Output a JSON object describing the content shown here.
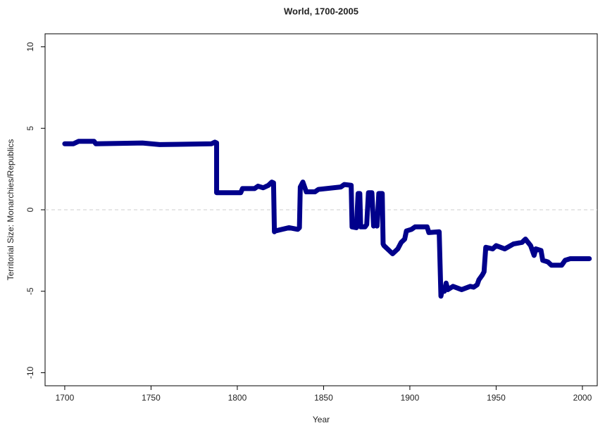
{
  "chart_data": {
    "type": "line",
    "title": "World, 1700-2005",
    "x_label": "Year",
    "y_label": "Territorial Size: Monarchies/Republics",
    "x": [
      1700,
      1705,
      1708,
      1717,
      1718,
      1745,
      1750,
      1755,
      1785,
      1787,
      1788,
      1788,
      1802,
      1803,
      1810,
      1812,
      1815,
      1818,
      1820,
      1821,
      1821.5,
      1822,
      1830,
      1835,
      1836,
      1836.5,
      1838,
      1840,
      1845,
      1847,
      1860,
      1862,
      1866,
      1866.5,
      1869,
      1870,
      1871,
      1871.5,
      1874,
      1875,
      1876,
      1878,
      1879,
      1880,
      1881,
      1882,
      1884,
      1884.5,
      1885,
      1888,
      1890,
      1893,
      1895,
      1897,
      1898,
      1901,
      1903,
      1910,
      1911,
      1917,
      1918,
      1919,
      1920,
      1921,
      1922,
      1925,
      1930,
      1935,
      1937,
      1939,
      1940,
      1942,
      1943,
      1944,
      1948,
      1950,
      1955,
      1960,
      1965,
      1967,
      1970,
      1972,
      1973,
      1976,
      1977,
      1980,
      1982,
      1988,
      1990,
      1993,
      2000,
      2004
    ],
    "series": [
      {
        "name": "World",
        "color": "#00008b",
        "values": [
          4.05,
          4.05,
          4.2,
          4.2,
          4.05,
          4.1,
          4.05,
          4.0,
          4.05,
          4.15,
          4.1,
          1.05,
          1.05,
          1.3,
          1.3,
          1.45,
          1.35,
          1.5,
          1.7,
          1.65,
          -1.35,
          -1.3,
          -1.1,
          -1.2,
          -1.1,
          1.4,
          1.7,
          1.1,
          1.1,
          1.25,
          1.4,
          1.55,
          1.5,
          -1.05,
          -1.1,
          1.0,
          1.0,
          -1.05,
          -1.05,
          -0.9,
          1.05,
          1.05,
          -1.0,
          -0.9,
          -1.0,
          1.0,
          1.0,
          -2.1,
          -2.2,
          -2.5,
          -2.7,
          -2.4,
          -2.0,
          -1.8,
          -1.3,
          -1.2,
          -1.05,
          -1.05,
          -1.4,
          -1.35,
          -5.3,
          -4.8,
          -5.0,
          -4.5,
          -4.9,
          -4.7,
          -4.9,
          -4.7,
          -4.75,
          -4.6,
          -4.3,
          -4.0,
          -3.8,
          -2.3,
          -2.4,
          -2.2,
          -2.4,
          -2.1,
          -2.0,
          -1.8,
          -2.2,
          -2.8,
          -2.4,
          -2.5,
          -3.1,
          -3.2,
          -3.4,
          -3.4,
          -3.1,
          -3.0,
          -3.0,
          -3.0
        ]
      }
    ],
    "xlim": [
      1688.6,
      2008.6
    ],
    "xticks": [
      1700,
      1750,
      1800,
      1850,
      1900,
      1950,
      2000
    ],
    "ylim": [
      -10.8,
      10.8
    ],
    "yticks": [
      -10,
      -5,
      0,
      5,
      10
    ],
    "reference_line": {
      "y": 0,
      "color": "#cccccc",
      "dashed": true
    }
  }
}
